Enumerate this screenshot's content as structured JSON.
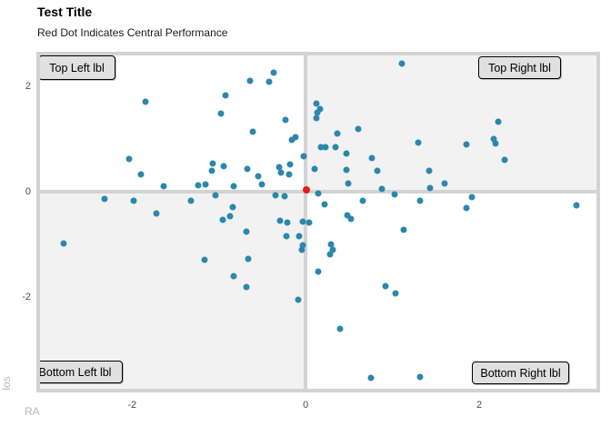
{
  "title": "Test Title",
  "subtitle": "Red Dot Indicates Central Performance",
  "axes": {
    "x_label": "RA",
    "y_label": "los",
    "x_ticks": [
      -2,
      0,
      2
    ],
    "y_ticks": [
      -2,
      0,
      2
    ]
  },
  "quadrant_labels": {
    "top_left": "Top Left lbl",
    "top_right": "Top Right lbl",
    "bottom_left": "Bottom Left lbl",
    "bottom_right": "Bottom Right lbl"
  },
  "colors": {
    "point": "#2b87ad",
    "center_point": "#e41a1c",
    "crosshair": "#d3d3d3",
    "panel_border": "#d3d3d3",
    "quadrant_shaded": "#f2f2f2",
    "quadrant_plain": "#ffffff",
    "tick_text": "#4d4d4d",
    "axis_title_text": "#b8b8b8",
    "label_box_fill": "#e0e0e0"
  },
  "chart_data": {
    "type": "scatter",
    "title": "Test Title",
    "subtitle": "Red Dot Indicates Central Performance",
    "xlabel": "RA",
    "ylabel": "los",
    "xlim": [
      -3.06,
      3.35
    ],
    "ylim": [
      -3.74,
      2.59
    ],
    "x_ticks": [
      -2,
      0,
      2
    ],
    "y_ticks": [
      -2,
      0,
      2
    ],
    "grid": false,
    "reference_lines": {
      "x": 0,
      "y": 0
    },
    "shaded_quadrants": [
      "top_right",
      "bottom_left"
    ],
    "series": [
      {
        "name": "observations",
        "color": "#2b87ad",
        "points": [
          [
            -1.84,
            1.71
          ],
          [
            -0.37,
            2.26
          ],
          [
            -0.64,
            2.1
          ],
          [
            -0.42,
            2.09
          ],
          [
            -0.92,
            1.83
          ],
          [
            -0.98,
            1.48
          ],
          [
            -0.23,
            1.36
          ],
          [
            -0.61,
            1.14
          ],
          [
            -0.16,
            0.98
          ],
          [
            -0.12,
            1.03
          ],
          [
            -2.03,
            0.62
          ],
          [
            -1.07,
            0.53
          ],
          [
            -1.08,
            0.4
          ],
          [
            -0.94,
            0.48
          ],
          [
            -0.02,
            0.67
          ],
          [
            -0.31,
            0.47
          ],
          [
            -0.28,
            0.36
          ],
          [
            -0.18,
            0.52
          ],
          [
            -0.19,
            0.33
          ],
          [
            -0.67,
            0.43
          ],
          [
            -0.55,
            0.29
          ],
          [
            -1.9,
            0.33
          ],
          [
            -1.64,
            0.1
          ],
          [
            -1.24,
            0.12
          ],
          [
            -1.15,
            0.14
          ],
          [
            -0.83,
            0.1
          ],
          [
            -0.5,
            0.14
          ],
          [
            1.11,
            2.43
          ],
          [
            0.12,
            1.67
          ],
          [
            0.13,
            1.5
          ],
          [
            0.17,
            1.57
          ],
          [
            0.12,
            1.4
          ],
          [
            0.61,
            1.19
          ],
          [
            0.37,
            1.1
          ],
          [
            2.22,
            1.33
          ],
          [
            2.17,
            1.0
          ],
          [
            2.19,
            0.91
          ],
          [
            1.3,
            0.93
          ],
          [
            1.85,
            0.9
          ],
          [
            0.34,
            0.84
          ],
          [
            0.23,
            0.84
          ],
          [
            0.18,
            0.84
          ],
          [
            0.47,
            0.72
          ],
          [
            0.76,
            0.64
          ],
          [
            2.29,
            0.6
          ],
          [
            0.1,
            0.43
          ],
          [
            0.47,
            0.41
          ],
          [
            0.83,
            0.4
          ],
          [
            1.42,
            0.4
          ],
          [
            0.49,
            0.16
          ],
          [
            0.88,
            0.05
          ],
          [
            1.43,
            0.07
          ],
          [
            1.6,
            0.16
          ],
          [
            0.14,
            -0.03
          ],
          [
            1.02,
            -0.05
          ],
          [
            -2.32,
            -0.14
          ],
          [
            -1.98,
            -0.17
          ],
          [
            -1.72,
            -0.41
          ],
          [
            -1.32,
            -0.17
          ],
          [
            -1.04,
            -0.07
          ],
          [
            -0.95,
            -0.53
          ],
          [
            -0.87,
            -0.47
          ],
          [
            -0.84,
            -0.29
          ],
          [
            -2.79,
            -0.98
          ],
          [
            -0.68,
            -0.76
          ],
          [
            -0.21,
            -0.59
          ],
          [
            -0.3,
            -0.55
          ],
          [
            -0.35,
            -0.07
          ],
          [
            -0.24,
            -0.09
          ],
          [
            -0.03,
            -0.57
          ],
          [
            -0.22,
            -0.84
          ],
          [
            -0.08,
            -0.84
          ],
          [
            -0.03,
            -1.02
          ],
          [
            -0.04,
            -1.1
          ],
          [
            -0.66,
            -1.28
          ],
          [
            -1.16,
            -1.29
          ],
          [
            -0.83,
            -1.6
          ],
          [
            -0.68,
            -1.81
          ],
          [
            -0.09,
            -2.05
          ],
          [
            0.22,
            -0.24
          ],
          [
            0.04,
            -0.59
          ],
          [
            0.48,
            -0.45
          ],
          [
            0.52,
            -0.52
          ],
          [
            0.66,
            -0.17
          ],
          [
            1.32,
            -0.17
          ],
          [
            1.13,
            -0.72
          ],
          [
            1.91,
            -0.1
          ],
          [
            1.85,
            -0.31
          ],
          [
            3.12,
            -0.26
          ],
          [
            0.29,
            -1.0
          ],
          [
            0.31,
            -1.1
          ],
          [
            0.28,
            -1.19
          ],
          [
            0.15,
            -1.52
          ],
          [
            0.92,
            -1.79
          ],
          [
            1.04,
            -1.93
          ],
          [
            0.4,
            -2.6
          ],
          [
            0.75,
            -3.53
          ],
          [
            1.32,
            -3.52
          ]
        ]
      },
      {
        "name": "central_performance",
        "color": "#e41a1c",
        "points": [
          [
            0.01,
            0.03
          ]
        ]
      }
    ]
  }
}
